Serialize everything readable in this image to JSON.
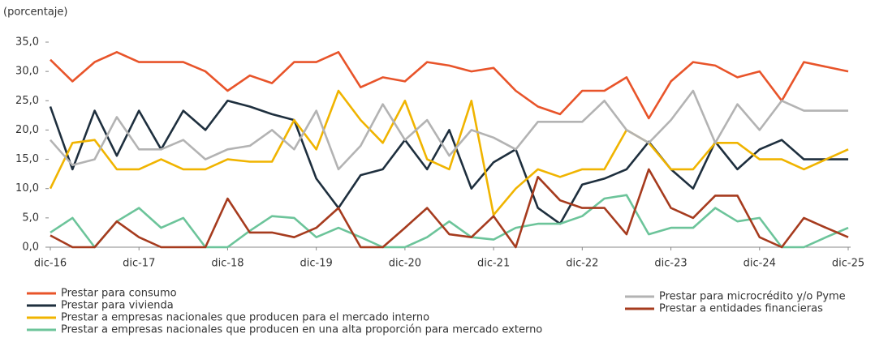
{
  "chart_data": {
    "type": "line",
    "subtitle": "(porcentaje)",
    "categories": [
      "dic-16",
      null,
      null,
      null,
      "dic-17",
      null,
      null,
      null,
      "dic-18",
      null,
      null,
      null,
      "dic-19",
      null,
      null,
      null,
      "dic-20",
      null,
      null,
      null,
      "dic-21",
      null,
      null,
      null,
      "dic-22",
      null,
      null,
      null,
      "dic-23",
      null,
      null,
      null,
      "dic-24",
      null,
      null,
      null,
      "dic-25"
    ],
    "ylim": [
      0,
      35
    ],
    "yticks": [
      {
        "value": 0,
        "label": "0,0"
      },
      {
        "value": 5,
        "label": "5,0"
      },
      {
        "value": 10,
        "label": "10,0"
      },
      {
        "value": 15,
        "label": "15,0"
      },
      {
        "value": 20,
        "label": "20,0"
      },
      {
        "value": 25,
        "label": "25,0"
      },
      {
        "value": 30,
        "label": "30,0"
      },
      {
        "value": 35,
        "label": "35,0"
      }
    ],
    "grid": false,
    "series": [
      {
        "name": "Prestar para consumo",
        "color": "#e8542a",
        "values": [
          32,
          28.3,
          31.6,
          33.3,
          31.6,
          31.6,
          31.6,
          30,
          26.7,
          29.3,
          28,
          31.6,
          31.6,
          33.3,
          27.3,
          29,
          28.3,
          31.6,
          31,
          30,
          30.6,
          26.7,
          24,
          22.7,
          26.7,
          26.7,
          29,
          22,
          28.3,
          31.6,
          31,
          29,
          30,
          25,
          31.6,
          30.8,
          30
        ]
      },
      {
        "name": "Prestar para vivienda",
        "color": "#1e2f3e",
        "values": [
          24,
          13.3,
          23.3,
          15.6,
          23.3,
          16.7,
          23.3,
          20,
          25,
          24,
          22.7,
          21.7,
          11.7,
          6.7,
          12.3,
          13.3,
          18.3,
          13.3,
          20,
          10,
          14.5,
          16.7,
          6.7,
          4,
          10.7,
          11.7,
          13.3,
          18,
          13.3,
          10,
          18,
          13.3,
          16.7,
          18.3,
          15,
          15,
          15
        ]
      },
      {
        "name": "Prestar a empresas nacionales que producen para el mercado interno",
        "color": "#f0b400",
        "values": [
          10,
          17.8,
          18.3,
          13.3,
          13.3,
          15,
          13.3,
          13.3,
          15,
          14.6,
          14.6,
          21.7,
          16.7,
          26.7,
          21.7,
          17.8,
          25,
          15,
          13.3,
          25,
          5.5,
          10,
          13.3,
          12,
          13.3,
          13.3,
          20,
          17.8,
          13.3,
          13.3,
          17.8,
          17.8,
          15,
          15,
          13.3,
          15,
          16.7
        ]
      },
      {
        "name": "Prestar a empresas nacionales que producen en una alta proporción para mercado externo",
        "color": "#6cc49a",
        "values": [
          2.5,
          5,
          0,
          4.4,
          6.7,
          3.3,
          5,
          0,
          0,
          2.8,
          5.3,
          5,
          1.7,
          3.3,
          1.7,
          0,
          0,
          1.7,
          4.4,
          1.7,
          1.3,
          3.3,
          4,
          4,
          5.3,
          8.3,
          8.9,
          2.2,
          3.3,
          3.3,
          6.7,
          4.4,
          5,
          0,
          0,
          1.7,
          3.3
        ]
      },
      {
        "name": "Prestar para microcrédito y/o Pyme",
        "color": "#b3b3b3",
        "values": [
          18.3,
          14,
          15,
          22.2,
          16.7,
          16.7,
          18.3,
          15,
          16.7,
          17.3,
          20,
          16.7,
          23.3,
          13.3,
          17.3,
          24.4,
          18.3,
          21.7,
          15.6,
          20,
          18.7,
          16.7,
          21.4,
          21.4,
          21.4,
          25,
          20,
          17.8,
          21.7,
          26.7,
          17.8,
          24.4,
          20,
          25,
          23.3,
          23.3,
          23.3
        ]
      },
      {
        "name": "Prestar a entidades financieras",
        "color": "#a63b1e",
        "values": [
          2,
          0,
          0,
          4.4,
          1.7,
          0,
          0,
          0,
          8.3,
          2.5,
          2.5,
          1.7,
          3.3,
          6.7,
          0,
          0,
          3.3,
          6.7,
          2.2,
          1.7,
          5.3,
          0,
          12,
          8,
          6.7,
          6.7,
          2.2,
          13.3,
          6.7,
          5,
          8.8,
          8.8,
          1.7,
          0,
          5,
          3.3,
          1.7
        ]
      }
    ]
  }
}
